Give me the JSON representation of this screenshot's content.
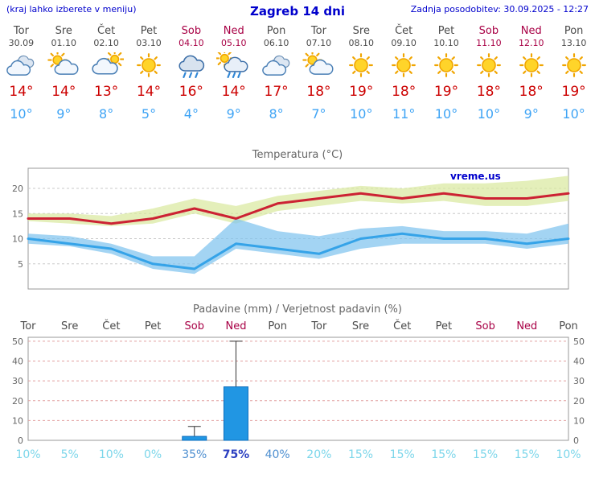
{
  "header": {
    "hint": "(kraj lahko izberete v meniju)",
    "title": "Zagreb 14 dni",
    "updated": "Zadnja posodobitev: 30.09.2025 - 12:27"
  },
  "watermark": "vreme.us",
  "days": [
    {
      "name": "Tor",
      "date": "30.09",
      "icon": "cloudy",
      "tmax": "14°",
      "tmin": "10°",
      "weekend": false
    },
    {
      "name": "Sre",
      "date": "01.10",
      "icon": "partly-cloudy",
      "tmax": "14°",
      "tmin": "9°",
      "weekend": false
    },
    {
      "name": "Čet",
      "date": "02.10",
      "icon": "mostly-cloudy",
      "tmax": "13°",
      "tmin": "8°",
      "weekend": false
    },
    {
      "name": "Pet",
      "date": "03.10",
      "icon": "sunny",
      "tmax": "14°",
      "tmin": "5°",
      "weekend": false
    },
    {
      "name": "Sob",
      "date": "04.10",
      "icon": "rain",
      "tmax": "16°",
      "tmin": "4°",
      "weekend": true
    },
    {
      "name": "Ned",
      "date": "05.10",
      "icon": "rain-sun",
      "tmax": "14°",
      "tmin": "9°",
      "weekend": true
    },
    {
      "name": "Pon",
      "date": "06.10",
      "icon": "cloudy",
      "tmax": "17°",
      "tmin": "8°",
      "weekend": false
    },
    {
      "name": "Tor",
      "date": "07.10",
      "icon": "partly-cloudy",
      "tmax": "18°",
      "tmin": "7°",
      "weekend": false
    },
    {
      "name": "Sre",
      "date": "08.10",
      "icon": "sunny",
      "tmax": "19°",
      "tmin": "10°",
      "weekend": false
    },
    {
      "name": "Čet",
      "date": "09.10",
      "icon": "sunny",
      "tmax": "18°",
      "tmin": "11°",
      "weekend": false
    },
    {
      "name": "Pet",
      "date": "10.10",
      "icon": "sunny",
      "tmax": "19°",
      "tmin": "10°",
      "weekend": false
    },
    {
      "name": "Sob",
      "date": "11.10",
      "icon": "sunny",
      "tmax": "18°",
      "tmin": "10°",
      "weekend": true
    },
    {
      "name": "Ned",
      "date": "12.10",
      "icon": "sunny",
      "tmax": "18°",
      "tmin": "9°",
      "weekend": true
    },
    {
      "name": "Pon",
      "date": "13.10",
      "icon": "sunny",
      "tmax": "19°",
      "tmin": "10°",
      "weekend": false
    }
  ],
  "chart_data": [
    {
      "type": "line",
      "title": "Temperatura (°C)",
      "categories": [
        "Tor",
        "Sre",
        "Čet",
        "Pet",
        "Sob",
        "Ned",
        "Pon",
        "Tor",
        "Sre",
        "Čet",
        "Pet",
        "Sob",
        "Ned",
        "Pon"
      ],
      "series": [
        {
          "name": "max-temperature",
          "values": [
            14,
            14,
            13,
            14,
            16,
            14,
            17,
            18,
            19,
            18,
            19,
            18,
            18,
            19
          ],
          "color": "#cc2233"
        },
        {
          "name": "min-temperature",
          "values": [
            10,
            9,
            8,
            5,
            4,
            9,
            8,
            7,
            10,
            11,
            10,
            10,
            9,
            10
          ],
          "color": "#35a3e8"
        }
      ],
      "bands": [
        {
          "name": "max-range",
          "upper": [
            15,
            15,
            14.5,
            16,
            18,
            16.5,
            18.5,
            19.5,
            20.5,
            20,
            21,
            21,
            21.5,
            22.5
          ],
          "lower": [
            13.5,
            13,
            12.5,
            13,
            15,
            13,
            15.5,
            16.5,
            17.5,
            17,
            17.5,
            16.5,
            16.5,
            17.5
          ],
          "color": "#d9e9a0"
        },
        {
          "name": "min-range",
          "upper": [
            11,
            10.5,
            9,
            6.5,
            6.5,
            14,
            11.5,
            10.5,
            12,
            12.5,
            11.5,
            11.5,
            11,
            13
          ],
          "lower": [
            9,
            8.5,
            7,
            4,
            3,
            8,
            7,
            6,
            8,
            9,
            9,
            9,
            8,
            9
          ],
          "color": "#7fc4ee"
        }
      ],
      "yticks": [
        5,
        10,
        15,
        20
      ],
      "ylim": [
        0,
        24
      ],
      "grid": true,
      "legend": "none"
    },
    {
      "type": "bar",
      "title": "Padavine (mm) / Verjetnost padavin (%)",
      "categories": [
        "Tor",
        "Sre",
        "Čet",
        "Pet",
        "Sob",
        "Ned",
        "Pon",
        "Tor",
        "Sre",
        "Čet",
        "Pet",
        "Sob",
        "Ned",
        "Pon"
      ],
      "weekend_flags": [
        false,
        false,
        false,
        false,
        true,
        true,
        false,
        false,
        false,
        false,
        false,
        true,
        true,
        false
      ],
      "values_mm": [
        0,
        0,
        0,
        0,
        2,
        27,
        0,
        0,
        0,
        0,
        0,
        0,
        0,
        0
      ],
      "whisker_max_mm": [
        0,
        0,
        0,
        0,
        7,
        50,
        0,
        0,
        0,
        0,
        0,
        0,
        0,
        0
      ],
      "probabilities_pct": [
        10,
        5,
        10,
        0,
        35,
        75,
        40,
        20,
        15,
        15,
        15,
        15,
        15,
        10
      ],
      "yticks": [
        0,
        10,
        20,
        30,
        40,
        50
      ],
      "ylim": [
        0,
        52
      ],
      "grid": true,
      "legend": "none",
      "colors": {
        "bar": "#2196e3",
        "bar_border": "#0d6ebd",
        "grid": "#e2a0a0",
        "prob_low": "#7cd6ea",
        "prob_mid": "#4e8fd0",
        "prob_high": "#2b3fc0"
      }
    }
  ]
}
